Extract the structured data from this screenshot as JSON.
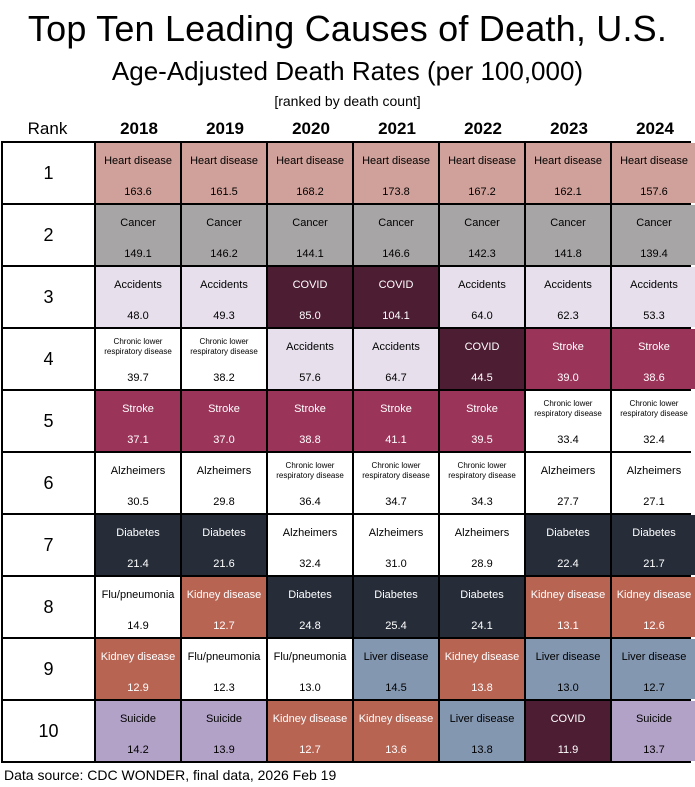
{
  "title": "Top Ten Leading Causes of Death, U.S.",
  "subtitle": "Age-Adjusted Death Rates (per 100,000)",
  "note": "[ranked by death count]",
  "rank_header": "Rank",
  "source": "Data source: CDC WONDER, final data, 2026 Feb 19",
  "colors": {
    "Heart disease": {
      "bg": "#d0a19a",
      "fg": "#000000"
    },
    "Cancer": {
      "bg": "#a7a5a5",
      "fg": "#000000"
    },
    "Accidents": {
      "bg": "#e7e0ec",
      "fg": "#000000"
    },
    "COVID": {
      "bg": "#4d1d33",
      "fg": "#ffffff"
    },
    "Chronic lower respiratory disease": {
      "bg": "#ffffff",
      "fg": "#000000"
    },
    "Stroke": {
      "bg": "#9b3459",
      "fg": "#ffffff"
    },
    "Alzheimers": {
      "bg": "#ffffff",
      "fg": "#000000"
    },
    "Diabetes": {
      "bg": "#262d39",
      "fg": "#ffffff"
    },
    "Flu/pneumonia": {
      "bg": "#ffffff",
      "fg": "#000000"
    },
    "Kidney disease": {
      "bg": "#b86453",
      "fg": "#ffffff"
    },
    "Liver disease": {
      "bg": "#8497b0",
      "fg": "#000000"
    },
    "Suicide": {
      "bg": "#b2a2c7",
      "fg": "#000000"
    }
  },
  "chart_data": {
    "type": "table",
    "title": "Top Ten Leading Causes of Death, U.S.",
    "subtitle": "Age-Adjusted Death Rates (per 100,000)",
    "row_header": "Rank",
    "years": [
      "2018",
      "2019",
      "2020",
      "2021",
      "2022",
      "2023",
      "2024"
    ],
    "ranks": [
      "1",
      "2",
      "3",
      "4",
      "5",
      "6",
      "7",
      "8",
      "9",
      "10"
    ],
    "rows": [
      [
        {
          "cause": "Heart disease",
          "value": "163.6"
        },
        {
          "cause": "Heart disease",
          "value": "161.5"
        },
        {
          "cause": "Heart disease",
          "value": "168.2"
        },
        {
          "cause": "Heart disease",
          "value": "173.8"
        },
        {
          "cause": "Heart disease",
          "value": "167.2"
        },
        {
          "cause": "Heart disease",
          "value": "162.1"
        },
        {
          "cause": "Heart disease",
          "value": "157.6"
        }
      ],
      [
        {
          "cause": "Cancer",
          "value": "149.1"
        },
        {
          "cause": "Cancer",
          "value": "146.2"
        },
        {
          "cause": "Cancer",
          "value": "144.1"
        },
        {
          "cause": "Cancer",
          "value": "146.6"
        },
        {
          "cause": "Cancer",
          "value": "142.3"
        },
        {
          "cause": "Cancer",
          "value": "141.8"
        },
        {
          "cause": "Cancer",
          "value": "139.4"
        }
      ],
      [
        {
          "cause": "Accidents",
          "value": "48.0"
        },
        {
          "cause": "Accidents",
          "value": "49.3"
        },
        {
          "cause": "COVID",
          "value": "85.0"
        },
        {
          "cause": "COVID",
          "value": "104.1"
        },
        {
          "cause": "Accidents",
          "value": "64.0"
        },
        {
          "cause": "Accidents",
          "value": "62.3"
        },
        {
          "cause": "Accidents",
          "value": "53.3"
        }
      ],
      [
        {
          "cause": "Chronic lower respiratory disease",
          "value": "39.7"
        },
        {
          "cause": "Chronic lower respiratory disease",
          "value": "38.2"
        },
        {
          "cause": "Accidents",
          "value": "57.6"
        },
        {
          "cause": "Accidents",
          "value": "64.7"
        },
        {
          "cause": "COVID",
          "value": "44.5"
        },
        {
          "cause": "Stroke",
          "value": "39.0"
        },
        {
          "cause": "Stroke",
          "value": "38.6"
        }
      ],
      [
        {
          "cause": "Stroke",
          "value": "37.1"
        },
        {
          "cause": "Stroke",
          "value": "37.0"
        },
        {
          "cause": "Stroke",
          "value": "38.8"
        },
        {
          "cause": "Stroke",
          "value": "41.1"
        },
        {
          "cause": "Stroke",
          "value": "39.5"
        },
        {
          "cause": "Chronic lower respiratory disease",
          "value": "33.4"
        },
        {
          "cause": "Chronic lower respiratory disease",
          "value": "32.4"
        }
      ],
      [
        {
          "cause": "Alzheimers",
          "value": "30.5"
        },
        {
          "cause": "Alzheimers",
          "value": "29.8"
        },
        {
          "cause": "Chronic lower respiratory disease",
          "value": "36.4"
        },
        {
          "cause": "Chronic lower respiratory disease",
          "value": "34.7"
        },
        {
          "cause": "Chronic lower respiratory disease",
          "value": "34.3"
        },
        {
          "cause": "Alzheimers",
          "value": "27.7"
        },
        {
          "cause": "Alzheimers",
          "value": "27.1"
        }
      ],
      [
        {
          "cause": "Diabetes",
          "value": "21.4"
        },
        {
          "cause": "Diabetes",
          "value": "21.6"
        },
        {
          "cause": "Alzheimers",
          "value": "32.4"
        },
        {
          "cause": "Alzheimers",
          "value": "31.0"
        },
        {
          "cause": "Alzheimers",
          "value": "28.9"
        },
        {
          "cause": "Diabetes",
          "value": "22.4"
        },
        {
          "cause": "Diabetes",
          "value": "21.7"
        }
      ],
      [
        {
          "cause": "Flu/pneumonia",
          "value": "14.9"
        },
        {
          "cause": "Kidney disease",
          "value": "12.7"
        },
        {
          "cause": "Diabetes",
          "value": "24.8"
        },
        {
          "cause": "Diabetes",
          "value": "25.4"
        },
        {
          "cause": "Diabetes",
          "value": "24.1"
        },
        {
          "cause": "Kidney disease",
          "value": "13.1"
        },
        {
          "cause": "Kidney disease",
          "value": "12.6"
        }
      ],
      [
        {
          "cause": "Kidney disease",
          "value": "12.9"
        },
        {
          "cause": "Flu/pneumonia",
          "value": "12.3"
        },
        {
          "cause": "Flu/pneumonia",
          "value": "13.0"
        },
        {
          "cause": "Liver disease",
          "value": "14.5"
        },
        {
          "cause": "Kidney disease",
          "value": "13.8"
        },
        {
          "cause": "Liver disease",
          "value": "13.0"
        },
        {
          "cause": "Liver disease",
          "value": "12.7"
        }
      ],
      [
        {
          "cause": "Suicide",
          "value": "14.2"
        },
        {
          "cause": "Suicide",
          "value": "13.9"
        },
        {
          "cause": "Kidney disease",
          "value": "12.7"
        },
        {
          "cause": "Kidney disease",
          "value": "13.6"
        },
        {
          "cause": "Liver disease",
          "value": "13.8"
        },
        {
          "cause": "COVID",
          "value": "11.9"
        },
        {
          "cause": "Suicide",
          "value": "13.7"
        }
      ]
    ]
  }
}
